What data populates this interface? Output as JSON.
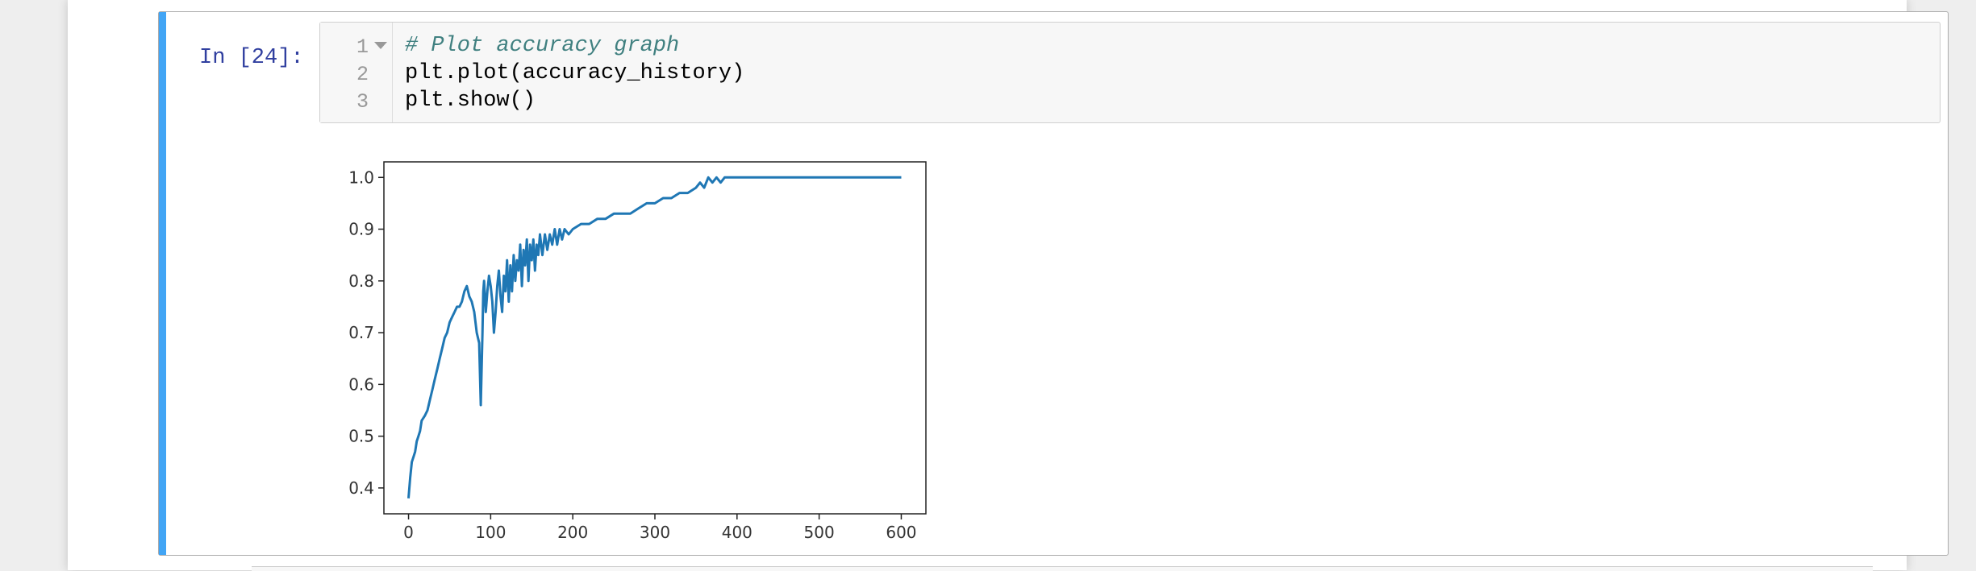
{
  "cell": {
    "prompt": "In [24]:",
    "lines": [
      {
        "number": "1",
        "text": "# Plot accuracy graph",
        "kind": "comment"
      },
      {
        "number": "2",
        "text": "plt.plot(accuracy_history)",
        "kind": "code"
      },
      {
        "number": "3",
        "text": "plt.show()",
        "kind": "code"
      }
    ]
  },
  "colors": {
    "cell_selected_bar": "#42a5f5",
    "prompt": "#303f9f",
    "comment": "#408080",
    "line_series": "#1f77b4"
  },
  "chart_data": {
    "type": "line",
    "title": "",
    "xlabel": "",
    "ylabel": "",
    "xlim": [
      -30,
      630
    ],
    "ylim": [
      0.35,
      1.03
    ],
    "xticks": [
      "0",
      "100",
      "200",
      "300",
      "400",
      "500",
      "600"
    ],
    "yticks": [
      "0.4",
      "0.5",
      "0.6",
      "0.7",
      "0.8",
      "0.9",
      "1.0"
    ],
    "grid": false,
    "series": [
      {
        "x": [
          0,
          2,
          4,
          6,
          8,
          10,
          12,
          14,
          16,
          18,
          20,
          23,
          26,
          29,
          32,
          35,
          38,
          41,
          44,
          47,
          50,
          53,
          56,
          59,
          62,
          65,
          68,
          71,
          74,
          77,
          80,
          83,
          86,
          88,
          90,
          91,
          92,
          94,
          96,
          98,
          100,
          102,
          104,
          106,
          108,
          110,
          112,
          114,
          116,
          118,
          120,
          122,
          124,
          126,
          128,
          130,
          132,
          134,
          136,
          138,
          140,
          142,
          144,
          146,
          148,
          150,
          152,
          154,
          156,
          158,
          160,
          163,
          166,
          169,
          172,
          175,
          178,
          181,
          184,
          187,
          190,
          195,
          200,
          210,
          220,
          230,
          240,
          250,
          260,
          270,
          280,
          290,
          300,
          310,
          320,
          330,
          340,
          350,
          355,
          360,
          365,
          370,
          375,
          380,
          385,
          390,
          400,
          420,
          450,
          500,
          550,
          600
        ],
        "y": [
          0.38,
          0.42,
          0.45,
          0.46,
          0.47,
          0.49,
          0.5,
          0.51,
          0.53,
          0.535,
          0.54,
          0.55,
          0.57,
          0.59,
          0.61,
          0.63,
          0.65,
          0.67,
          0.69,
          0.7,
          0.72,
          0.73,
          0.74,
          0.75,
          0.75,
          0.76,
          0.78,
          0.79,
          0.77,
          0.76,
          0.74,
          0.7,
          0.68,
          0.56,
          0.7,
          0.78,
          0.8,
          0.74,
          0.78,
          0.81,
          0.79,
          0.76,
          0.7,
          0.74,
          0.79,
          0.82,
          0.77,
          0.74,
          0.81,
          0.78,
          0.84,
          0.76,
          0.83,
          0.78,
          0.85,
          0.8,
          0.84,
          0.82,
          0.87,
          0.79,
          0.86,
          0.83,
          0.88,
          0.8,
          0.87,
          0.84,
          0.88,
          0.82,
          0.87,
          0.85,
          0.89,
          0.85,
          0.89,
          0.86,
          0.89,
          0.87,
          0.9,
          0.87,
          0.9,
          0.88,
          0.9,
          0.89,
          0.9,
          0.91,
          0.91,
          0.92,
          0.92,
          0.93,
          0.93,
          0.93,
          0.94,
          0.95,
          0.95,
          0.96,
          0.96,
          0.97,
          0.97,
          0.98,
          0.99,
          0.98,
          1.0,
          0.99,
          1.0,
          0.99,
          1.0,
          1.0,
          1.0,
          1.0,
          1.0,
          1.0,
          1.0,
          1.0
        ]
      }
    ]
  }
}
